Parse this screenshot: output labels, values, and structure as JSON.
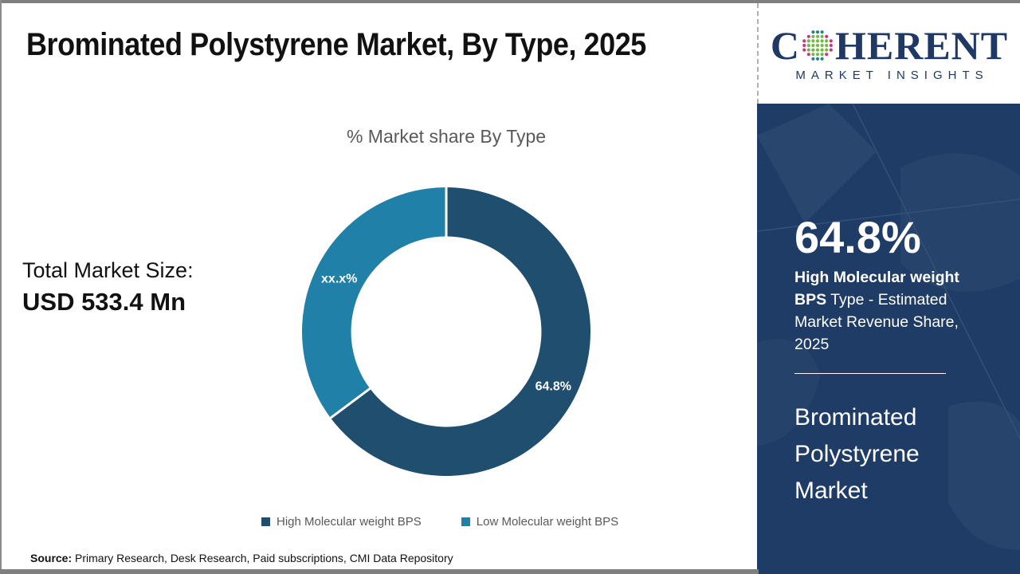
{
  "header": {
    "title": "Brominated Polystyrene Market, By Type, 2025"
  },
  "logo": {
    "word_start": "C",
    "word_end": "HERENT",
    "subtitle": "MARKET INSIGHTS",
    "navy": "#1F3864",
    "dot_green": "#72B944",
    "dot_magenta": "#C03B82",
    "dot_teal": "#2D7D8D"
  },
  "chart_data": {
    "type": "pie",
    "subtype": "donut",
    "title": "% Market share By Type",
    "categories": [
      "High Molecular weight BPS",
      "Low Molecular weight BPS"
    ],
    "values": [
      64.8,
      35.2
    ],
    "display_labels": [
      "64.8%",
      "xx.x%"
    ],
    "colors": [
      "#1F4E6E",
      "#2080A8"
    ],
    "hole_ratio": 0.66,
    "start_angle_deg": 0,
    "direction": "clockwise",
    "legend_position": "bottom",
    "label_color": "#FFFFFF"
  },
  "stats": {
    "total_label": "Total Market Size:",
    "total_value": "USD 533.4 Mn"
  },
  "sidebar": {
    "bg": "#1E3C66",
    "stat_value": "64.8%",
    "stat_desc_bold": "High Molecular weight BPS",
    "stat_desc_rest": " Type - Estimated Market Revenue Share, 2025",
    "market_name": "Brominated Polystyrene Market"
  },
  "footer": {
    "source_label": "Source:",
    "source_text": " Primary Research, Desk Research, Paid subscriptions, CMI Data Repository"
  }
}
